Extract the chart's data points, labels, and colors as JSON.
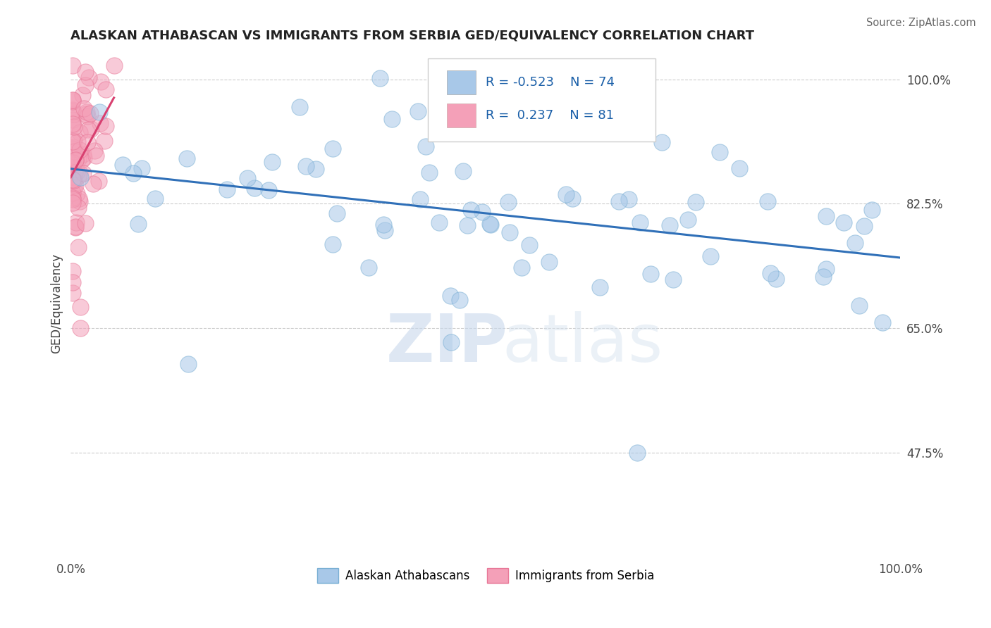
{
  "title": "ALASKAN ATHABASCAN VS IMMIGRANTS FROM SERBIA GED/EQUIVALENCY CORRELATION CHART",
  "source": "Source: ZipAtlas.com",
  "ylabel": "GED/Equivalency",
  "xlim": [
    0.0,
    1.0
  ],
  "ylim": [
    0.33,
    1.04
  ],
  "yticks_right": [
    0.475,
    0.65,
    0.825,
    1.0
  ],
  "yticks_right_labels": [
    "47.5%",
    "65.0%",
    "82.5%",
    "100.0%"
  ],
  "blue_R": -0.523,
  "blue_N": 74,
  "pink_R": 0.237,
  "pink_N": 81,
  "blue_color": "#a8c8e8",
  "pink_color": "#f4a0b8",
  "blue_edge_color": "#7aafd4",
  "pink_edge_color": "#e87898",
  "blue_line_color": "#3070b8",
  "pink_line_color": "#d84070",
  "watermark_zip": "ZIP",
  "watermark_atlas": "atlas",
  "legend_label_blue": "Alaskan Athabascans",
  "legend_label_pink": "Immigrants from Serbia",
  "blue_line_x": [
    0.0,
    1.0
  ],
  "blue_line_y": [
    0.918,
    0.718
  ],
  "pink_line_x": [
    0.0,
    0.16
  ],
  "pink_line_y": [
    0.86,
    0.96
  ]
}
